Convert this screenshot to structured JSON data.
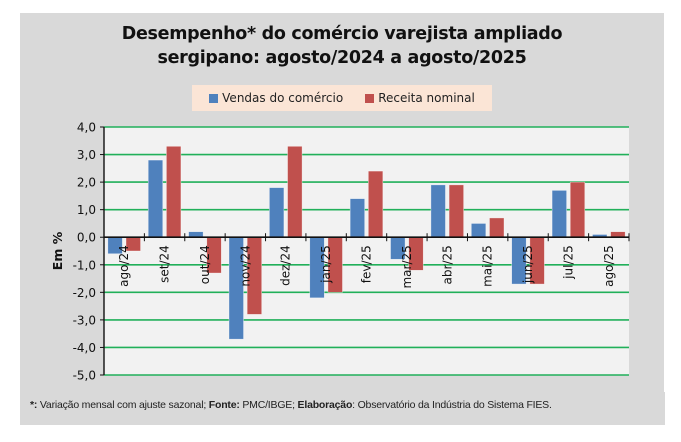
{
  "colors": {
    "frame": "#d9d9d9",
    "plot_bg": "#f2f2f2",
    "grid": "#21b05a",
    "series1": "#4f81bd",
    "series2": "#c0504d",
    "legend_bg": "#fbe5d6"
  },
  "chart_data": {
    "type": "bar",
    "title_line1": "Desempenho* do comércio varejista ampliado",
    "title_line2": "sergipano: agosto/2024 a agosto/2025",
    "ylabel": "Em %",
    "xlabel": "",
    "ylim": [
      -5.0,
      4.0
    ],
    "yticks": [
      "4,0",
      "3,0",
      "2,0",
      "1,0",
      "0,0",
      "-1,0",
      "-2,0",
      "-3,0",
      "-4,0",
      "-5,0"
    ],
    "ytick_values": [
      4,
      3,
      2,
      1,
      0,
      -1,
      -2,
      -3,
      -4,
      -5
    ],
    "grid": true,
    "legend_position": "top-center",
    "categories": [
      "ago/24",
      "set/24",
      "out/24",
      "nov/24",
      "dez/24",
      "jan/25",
      "fev/25",
      "mar/25",
      "abr/25",
      "mai/25",
      "jun/25",
      "jul/25",
      "ago/25"
    ],
    "series": [
      {
        "name": "Vendas do comércio",
        "values": [
          -0.6,
          2.8,
          0.2,
          -3.7,
          1.8,
          -2.2,
          1.4,
          -0.8,
          1.9,
          0.5,
          -1.7,
          1.7,
          0.1
        ]
      },
      {
        "name": "Receita nominal",
        "values": [
          -0.5,
          3.3,
          -1.3,
          -2.8,
          3.3,
          -2.0,
          2.4,
          -1.2,
          1.9,
          0.7,
          -1.7,
          2.0,
          0.2
        ]
      }
    ]
  },
  "footer": {
    "asterisk_label": "*:",
    "asterisk_text": " Variação mensal com ajuste sazonal; ",
    "source_label": "Fonte:",
    "source_text": " PMC/IBGE; ",
    "author_label": "Elaboração",
    "author_text": ": Observatório da Indústria do Sistema FIES."
  }
}
